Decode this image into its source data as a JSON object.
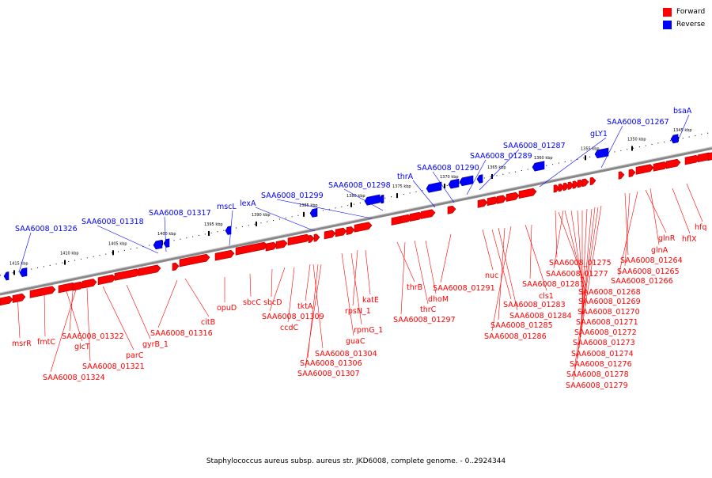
{
  "caption": "Staphylococcus aureus subsp. aureus str. JKD6008, complete genome. - 0..2924344",
  "legend": [
    {
      "label": "Forward",
      "color": "#ff0000"
    },
    {
      "label": "Reverse",
      "color": "#0000ff"
    }
  ],
  "colors": {
    "forward": "#ff0000",
    "reverse": "#0000ff",
    "forward_dark": "#a00000",
    "reverse_dark": "#00008a",
    "backbone": "#888888"
  },
  "ruler_ticks": [
    "1415 kbp",
    "1410 kbp",
    "1405 kbp",
    "1400 kbp",
    "1395 kbp",
    "1390 kbp",
    "1385 kbp",
    "1380 kbp",
    "1375 kbp",
    "1370 kbp",
    "1365 kbp",
    "1360 kbp",
    "1355 kbp",
    "1350 kbp",
    "1345 kbp"
  ],
  "forward_genes": [
    "msrR",
    "fmtC",
    "glcT",
    "SAA6008_01322",
    "SAA6008_01324",
    "SAA6008_01321",
    "parC",
    "gyrB_1",
    "SAA6008_01316",
    "citB",
    "opuD",
    "sbcC",
    "sbcD",
    "SAA6008_01309",
    "ccdC",
    "tktA",
    "SAA6008_01304",
    "SAA6008_01306",
    "SAA6008_01307",
    "guaC",
    "rpmG_1",
    "rpsN_1",
    "katE",
    "thrB",
    "SAA6008_01297",
    "thrC",
    "dhoM",
    "SAA6008_01291",
    "nuc",
    "SAA6008_01283",
    "SAA6008_01284",
    "SAA6008_01285",
    "SAA6008_01286",
    "cls1",
    "SAA6008_01281",
    "SAA6008_01275",
    "SAA6008_01277",
    "SAA6008_01268",
    "SAA6008_01269",
    "SAA6008_01270",
    "SAA6008_01271",
    "SAA6008_01272",
    "SAA6008_01273",
    "SAA6008_01274",
    "SAA6008_01276",
    "SAA6008_01278",
    "SAA6008_01279",
    "SAA6008_01264",
    "SAA6008_01265",
    "SAA6008_01266",
    "glnR",
    "glnA",
    "hflX",
    "hfq"
  ],
  "reverse_genes": [
    "SAA6008_01326",
    "SAA6008_01318",
    "SAA6008_01317",
    "mscL",
    "lexA",
    "SAA6008_01299",
    "SAA6008_01298",
    "thrA",
    "SAA6008_01290",
    "SAA6008_01289",
    "SAA6008_01287",
    "gLY1",
    "SAA6008_01267",
    "bsaA"
  ]
}
